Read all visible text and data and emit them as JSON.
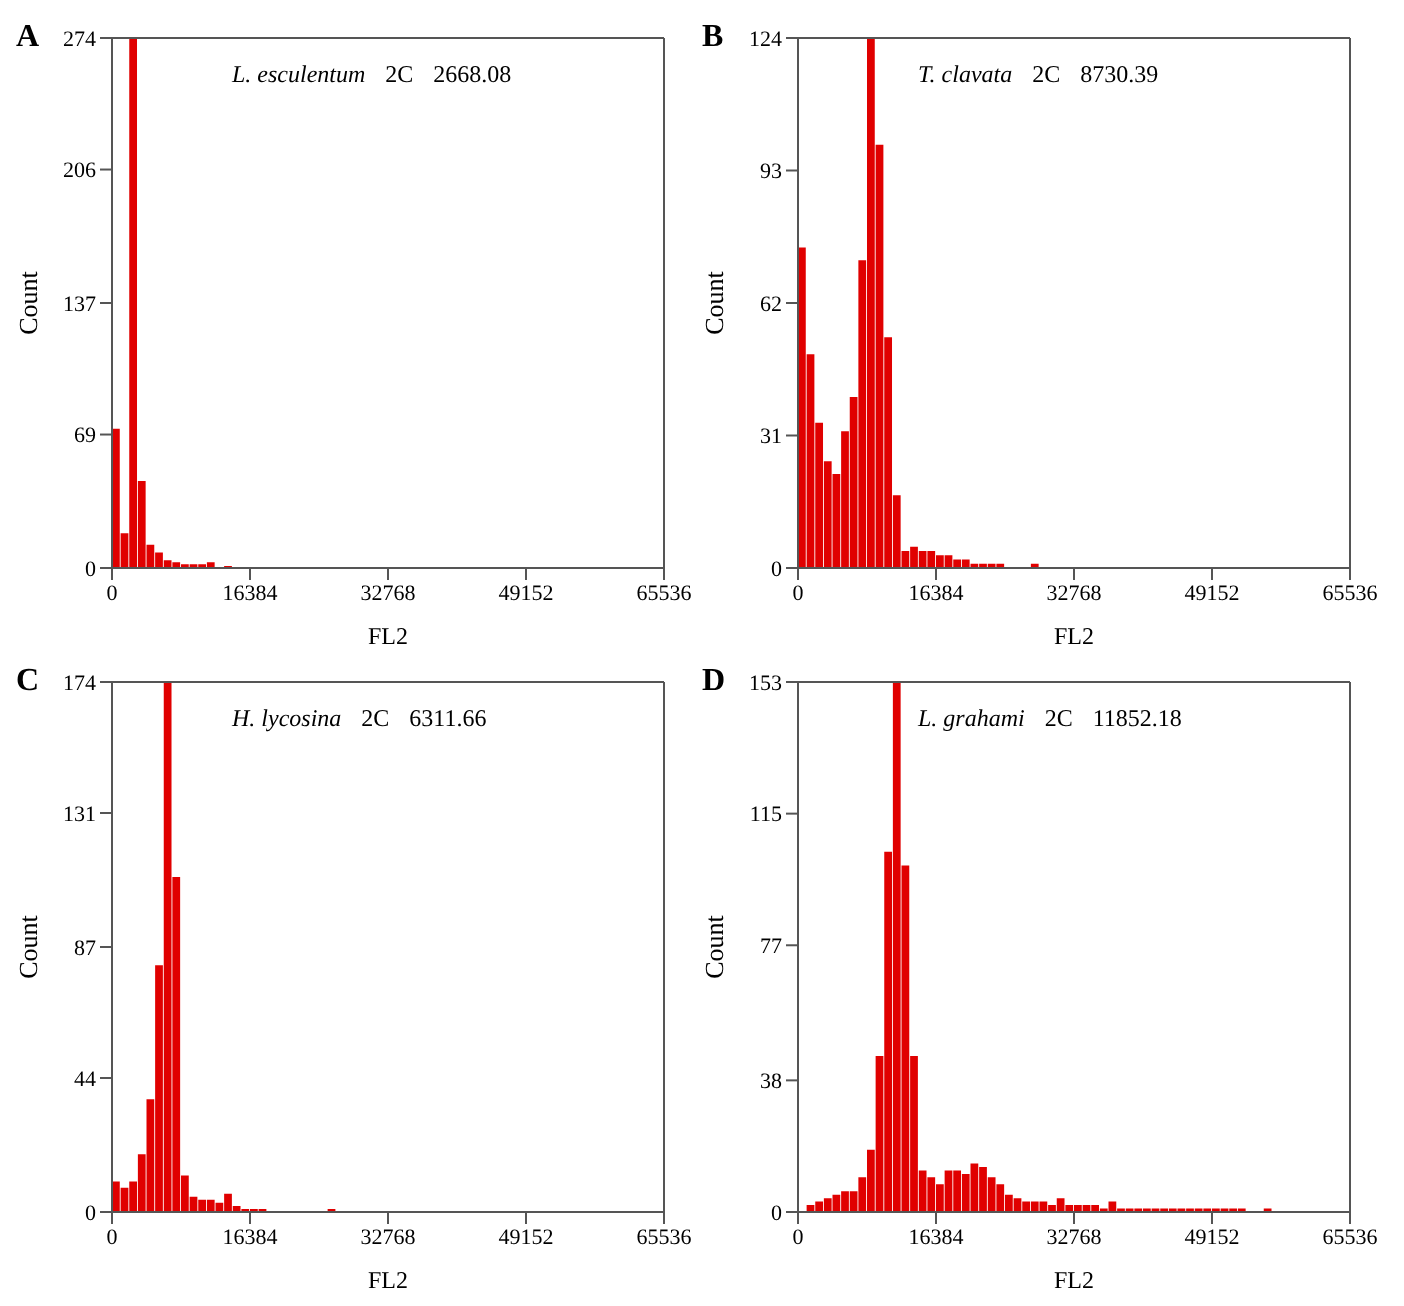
{
  "chart_data": [
    {
      "type": "histogram",
      "title": "A",
      "xlabel": "FL2",
      "ylabel": "Count",
      "annotations": [
        "L. esculentum",
        "2C",
        "2668.08"
      ],
      "color": "#e00000",
      "xlim": [
        0,
        65536
      ],
      "xticks": [
        0,
        16384,
        32768,
        49152,
        65536
      ],
      "ylim": [
        0,
        274
      ],
      "yticks": [
        0,
        69,
        137,
        206,
        274
      ],
      "bins": [
        0,
        1024,
        2048,
        3072,
        4096,
        5120,
        6144,
        7168,
        8192,
        9216,
        10240,
        11264,
        12288,
        13312,
        14336
      ],
      "values": [
        72,
        18,
        274,
        45,
        12,
        8,
        4,
        3,
        2,
        2,
        2,
        3,
        null,
        1
      ]
    },
    {
      "type": "histogram",
      "title": "B",
      "xlabel": "FL2",
      "ylabel": "Count",
      "annotations": [
        "T. clavata",
        "2C",
        "8730.39"
      ],
      "color": "#e00000",
      "xlim": [
        0,
        65536
      ],
      "xticks": [
        0,
        16384,
        32768,
        49152,
        65536
      ],
      "ylim": [
        0,
        124
      ],
      "yticks": [
        0,
        31,
        62,
        93,
        124
      ],
      "bins": [
        0,
        1024,
        2048,
        3072,
        4096,
        5120,
        6144,
        7168,
        8192,
        9216,
        10240,
        11264,
        12288,
        13312,
        14336,
        15360,
        16384,
        17408,
        18432,
        19456,
        20480,
        21504,
        22528,
        23552,
        24576,
        25600,
        26624,
        27648,
        28672
      ],
      "values": [
        75,
        50,
        34,
        25,
        22,
        32,
        40,
        72,
        124,
        99,
        54,
        17,
        4,
        5,
        4,
        4,
        3,
        3,
        2,
        2,
        1,
        1,
        1,
        1,
        0,
        0,
        0,
        1
      ]
    },
    {
      "type": "histogram",
      "title": "C",
      "xlabel": "FL2",
      "ylabel": "Count",
      "annotations": [
        "H. lycosina",
        "2C",
        "6311.66"
      ],
      "color": "#e00000",
      "xlim": [
        0,
        65536
      ],
      "xticks": [
        0,
        16384,
        32768,
        49152,
        65536
      ],
      "ylim": [
        0,
        174
      ],
      "yticks": [
        0,
        44,
        87,
        131,
        174
      ],
      "bins": [
        0,
        1024,
        2048,
        3072,
        4096,
        5120,
        6144,
        7168,
        8192,
        9216,
        10240,
        11264,
        12288,
        13312,
        14336,
        15360,
        16384,
        17408,
        18432,
        19456,
        20480,
        21504,
        22528,
        23552,
        24576,
        25600,
        26624
      ],
      "values": [
        10,
        8,
        10,
        19,
        37,
        81,
        174,
        110,
        12,
        5,
        4,
        4,
        3,
        6,
        2,
        1,
        1,
        1,
        0,
        0,
        0,
        0,
        0,
        0,
        0,
        1
      ]
    },
    {
      "type": "histogram",
      "title": "D",
      "xlabel": "FL2",
      "ylabel": "Count",
      "annotations": [
        "L. grahami",
        "2C",
        "11852.18"
      ],
      "color": "#e00000",
      "xlim": [
        0,
        65536
      ],
      "xticks": [
        0,
        16384,
        32768,
        49152,
        65536
      ],
      "ylim": [
        0,
        153
      ],
      "yticks": [
        0,
        38,
        77,
        115,
        153
      ],
      "bins": [
        0,
        1024,
        2048,
        3072,
        4096,
        5120,
        6144,
        7168,
        8192,
        9216,
        10240,
        11264,
        12288,
        13312,
        14336,
        15360,
        16384,
        17408,
        18432,
        19456,
        20480,
        21504,
        22528,
        23552,
        24576,
        25600,
        26624,
        27648,
        28672,
        29696,
        30720,
        31744,
        32768,
        33792,
        34816,
        35840,
        36864,
        37888,
        38912,
        39936,
        40960,
        41984,
        43008,
        44032,
        45056,
        46080,
        47104,
        48128,
        49152,
        50176,
        51200,
        52224,
        53248,
        54272,
        55296,
        56320
      ],
      "values": [
        0,
        2,
        3,
        4,
        5,
        6,
        6,
        10,
        18,
        45,
        104,
        153,
        100,
        45,
        12,
        10,
        8,
        12,
        12,
        11,
        14,
        13,
        10,
        8,
        5,
        4,
        3,
        3,
        3,
        2,
        4,
        2,
        2,
        2,
        2,
        1,
        3,
        1,
        1,
        1,
        1,
        1,
        1,
        1,
        1,
        1,
        1,
        1,
        1,
        1,
        1,
        1,
        0,
        0,
        1
      ]
    }
  ]
}
